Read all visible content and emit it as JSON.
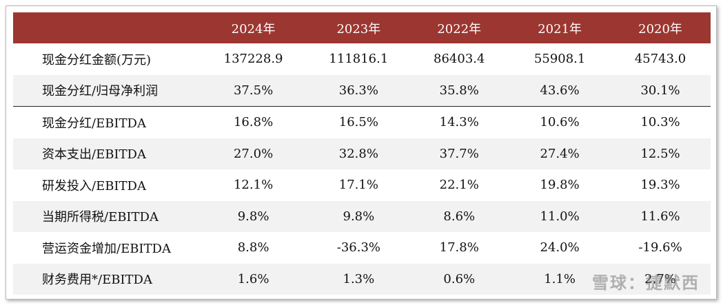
{
  "table": {
    "header": [
      "2024年",
      "2023年",
      "2022年",
      "2021年",
      "2020年"
    ],
    "rows": [
      [
        "现金分红金额(万元)",
        "137228.9",
        "111816.1",
        "86403.4",
        "55908.1",
        "45743.0"
      ],
      [
        "现金分红/归母净利润",
        "37.5%",
        "36.3%",
        "35.8%",
        "43.6%",
        "30.1%"
      ],
      [
        "现金分红/EBITDA",
        "16.8%",
        "16.5%",
        "14.3%",
        "10.6%",
        "10.3%"
      ],
      [
        "资本支出/EBITDA",
        "27.0%",
        "32.8%",
        "37.7%",
        "27.4%",
        "12.5%"
      ],
      [
        "研发投入/EBITDA",
        "12.1%",
        "17.1%",
        "22.1%",
        "19.8%",
        "19.3%"
      ],
      [
        "当期所得税/EBITDA",
        "9.8%",
        "9.8%",
        "8.6%",
        "11.0%",
        "11.6%"
      ],
      [
        "营运资金增加/EBITDA",
        "8.8%",
        "-36.3%",
        "17.8%",
        "24.0%",
        "-19.6%"
      ],
      [
        "财务费用*/EBITDA",
        "1.6%",
        "1.3%",
        "0.6%",
        "1.1%",
        "2.7%"
      ]
    ]
  },
  "watermark": "雪球：捷默西"
}
